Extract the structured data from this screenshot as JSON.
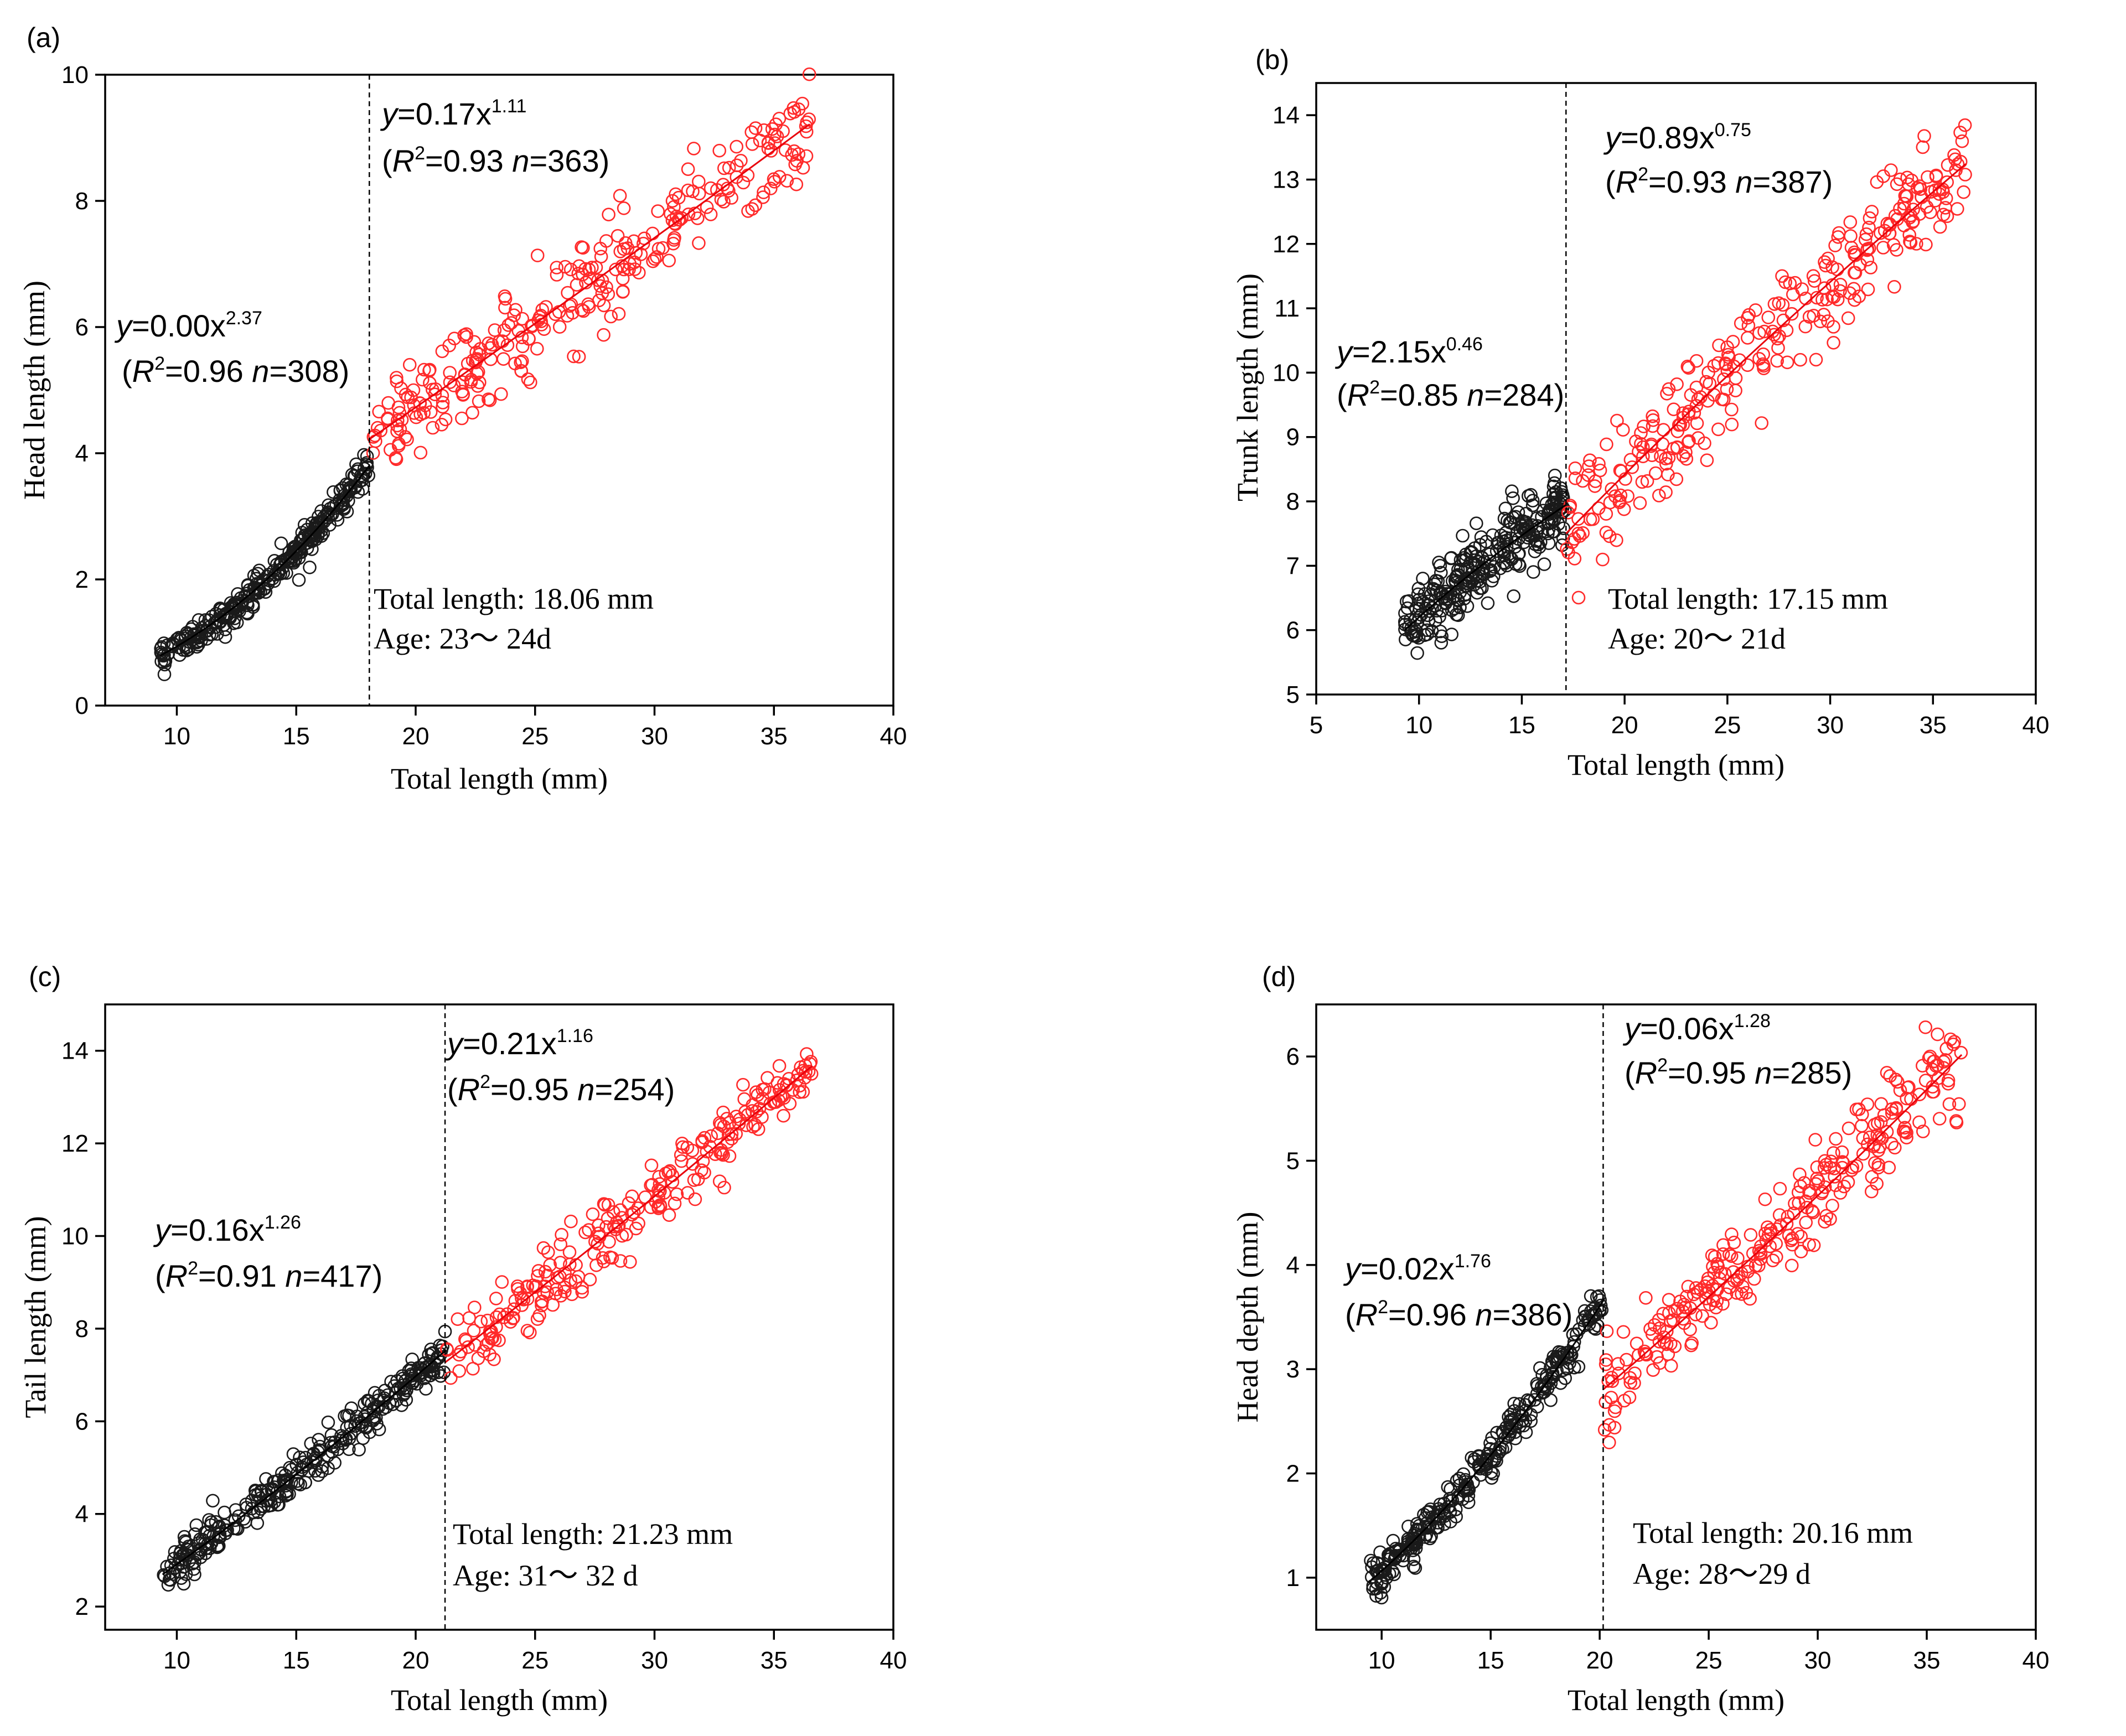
{
  "figure": {
    "colors": {
      "juvenile": "#1a1a1a",
      "adult": "#ff2a2a",
      "fit_adult": "#e8000b"
    }
  },
  "chart_data": [
    {
      "id": "a",
      "type": "scatter",
      "panel_label": "(a)",
      "xlabel": "Total length (mm)",
      "ylabel": "Head length (mm)",
      "xlim": [
        7,
        40
      ],
      "ylim": [
        0,
        10
      ],
      "xticks": [
        10,
        15,
        20,
        25,
        30,
        35,
        40
      ],
      "yticks": [
        0,
        2,
        4,
        6,
        8,
        10
      ],
      "inflection": 18.06,
      "fit1": {
        "a": 0.004,
        "b": 2.37,
        "x_range": [
          9.3,
          18.06
        ],
        "eq_coef": "0.00",
        "eq_exp": "2.37",
        "r2": "0.96",
        "n": "308"
      },
      "fit2": {
        "a": 0.17,
        "b": 1.11,
        "x_range": [
          18.06,
          36.5
        ],
        "eq_coef": "0.17",
        "eq_exp": "1.11",
        "r2": "0.93",
        "n": "363"
      },
      "spread1": 0.12,
      "spread2": 0.38,
      "seg1": {
        "pre": "y",
        "eq": "=0.00x",
        "exp": "2.37",
        "r2": "=0.96 ",
        "n": "=308)"
      },
      "seg2": {
        "pre": "y",
        "eq": "=0.17x",
        "exp": "1.11",
        "r2": "=0.93 ",
        "n": "=363)"
      },
      "info_total": "Total length: 18.06 mm",
      "info_age": "Age: 23～ 24d"
    },
    {
      "id": "b",
      "type": "scatter",
      "panel_label": "(b)",
      "xlabel": "Total length (mm)",
      "ylabel": "Trunk length (mm)",
      "xlim": [
        5,
        40
      ],
      "ylim": [
        5,
        14.5
      ],
      "xticks": [
        5,
        10,
        15,
        20,
        25,
        30,
        35,
        40
      ],
      "yticks": [
        5,
        6,
        7,
        8,
        9,
        10,
        11,
        12,
        13,
        14
      ],
      "inflection": 17.15,
      "fit1": {
        "a": 2.15,
        "b": 0.46,
        "x_range": [
          9.3,
          17.15
        ],
        "eq_coef": "2.15",
        "eq_exp": "0.46",
        "r2": "0.85",
        "n": "284"
      },
      "fit2": {
        "a": 0.89,
        "b": 0.75,
        "x_range": [
          17.15,
          36.6
        ],
        "eq_coef": "0.89",
        "eq_exp": "0.75",
        "r2": "0.93",
        "n": "387"
      },
      "spread1": 0.28,
      "spread2": 0.42,
      "seg1": {
        "pre": "y",
        "eq": "=2.15x",
        "exp": "0.46",
        "r2": "=0.85 ",
        "n": "=284)"
      },
      "seg2": {
        "pre": "y",
        "eq": "=0.89x",
        "exp": "0.75",
        "r2": "=0.93 ",
        "n": "=387)"
      },
      "info_total": "Total length: 17.15 mm",
      "info_age": "Age: 20～ 21d"
    },
    {
      "id": "c",
      "type": "scatter",
      "panel_label": "(c)",
      "xlabel": "Total length (mm)",
      "ylabel": "Tail length (mm)",
      "xlim": [
        7,
        40
      ],
      "ylim": [
        1.5,
        15
      ],
      "xticks": [
        10,
        15,
        20,
        25,
        30,
        35,
        40
      ],
      "yticks": [
        2,
        4,
        6,
        8,
        10,
        12,
        14
      ],
      "inflection": 21.23,
      "fit1": {
        "a": 0.16,
        "b": 1.26,
        "x_range": [
          9.4,
          21.23
        ],
        "eq_coef": "0.16",
        "eq_exp": "1.26",
        "r2": "0.91",
        "n": "417"
      },
      "fit2": {
        "a": 0.21,
        "b": 1.16,
        "x_range": [
          21.23,
          36.6
        ],
        "eq_coef": "0.21",
        "eq_exp": "1.16",
        "r2": "0.95",
        "n": "254"
      },
      "spread1": 0.22,
      "spread2": 0.38,
      "seg1": {
        "pre": "y",
        "eq": "=0.16x",
        "exp": "1.26",
        "r2": "=0.91 ",
        "n": "=417)"
      },
      "seg2": {
        "pre": "y",
        "eq": "=0.21x",
        "exp": "1.16",
        "r2": "=0.95 ",
        "n": "=254)"
      },
      "info_total": "Total length: 21.23 mm",
      "info_age": "Age: 31～ 32 d"
    },
    {
      "id": "d",
      "type": "scatter",
      "panel_label": "(d)",
      "xlabel": "Total length (mm)",
      "ylabel": "Head depth (mm)",
      "xlim": [
        7,
        40
      ],
      "ylim": [
        0.5,
        6.5
      ],
      "xticks": [
        10,
        15,
        20,
        25,
        30,
        35,
        40
      ],
      "yticks": [
        1,
        2,
        3,
        4,
        5,
        6
      ],
      "inflection": 20.16,
      "fit1": {
        "a": 0.0185,
        "b": 1.76,
        "x_range": [
          9.4,
          20.16
        ],
        "eq_coef": "0.02",
        "eq_exp": "1.76",
        "r2": "0.96",
        "n": "386"
      },
      "fit2": {
        "a": 0.06,
        "b": 1.28,
        "x_range": [
          20.16,
          36.6
        ],
        "eq_coef": "0.06",
        "eq_exp": "1.28",
        "r2": "0.95",
        "n": "285"
      },
      "spread1": 0.1,
      "spread2": 0.22,
      "seg1": {
        "pre": "y",
        "eq": "=0.02x",
        "exp": "1.76",
        "r2": "=0.96 ",
        "n": "=386)"
      },
      "seg2": {
        "pre": "y",
        "eq": "=0.06x",
        "exp": "1.28",
        "r2": "=0.95 ",
        "n": "=285)"
      },
      "info_total": "Total length: 20.16 mm",
      "info_age": "Age: 28～29 d"
    }
  ]
}
